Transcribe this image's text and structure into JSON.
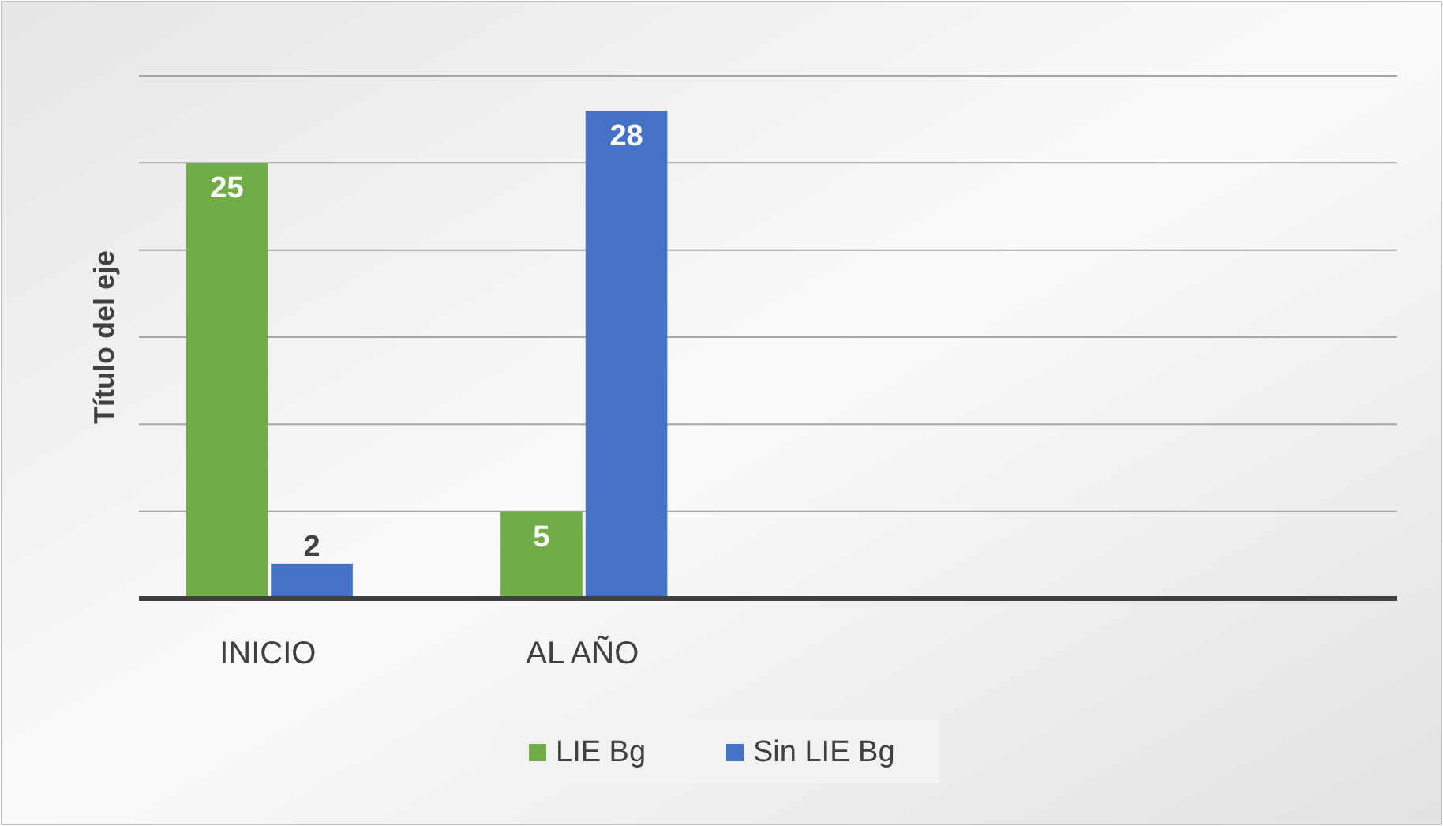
{
  "chart_data": {
    "type": "bar",
    "ylabel": "Título del eje",
    "categories": [
      "INICIO",
      "AL AÑO",
      null,
      null
    ],
    "series": [
      {
        "name": "LIE Bg",
        "color": "#70ad47",
        "values": [
          25,
          5,
          null,
          null
        ]
      },
      {
        "name": "Sin LIE Bg",
        "color": "#4472c4",
        "values": [
          2,
          28,
          null,
          null
        ]
      }
    ],
    "ylim": [
      0,
      30
    ],
    "yticks": [
      {
        "value": 0,
        "label": null
      },
      {
        "value": 5,
        "label": null
      },
      {
        "value": 10,
        "label": null
      },
      {
        "value": 15,
        "label": null
      },
      {
        "value": 20,
        "label": null
      },
      {
        "value": 25,
        "label": null
      },
      {
        "value": 30,
        "label": null
      }
    ],
    "grid": "y",
    "data_labels": true,
    "legend": "bottom"
  }
}
